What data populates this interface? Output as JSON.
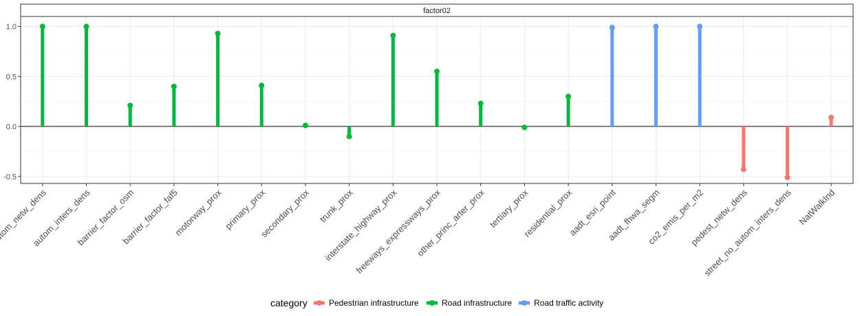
{
  "chart_data": {
    "type": "lollipop",
    "facet": "factor02",
    "categories": [
      "autom_netw_dens",
      "autom_inters_dens",
      "barrier_factor_osm",
      "barrier_factor_faf5",
      "motorway_prox",
      "primary_prox",
      "secondary_prox",
      "trunk_prox",
      "interstate_highway_prox",
      "freeways_expressways_prox",
      "other_princ_arter_prox",
      "tertiary_prox",
      "residential_prox",
      "aadt_esri_point",
      "aadt_fhwa_segm",
      "co2_emis_per_m2",
      "pedest_netw_dens",
      "street_no_autom_inters_dens",
      "NatWalkInd"
    ],
    "values": [
      1.0,
      1.0,
      0.21,
      0.4,
      0.93,
      0.41,
      0.01,
      -0.1,
      0.91,
      0.55,
      0.23,
      -0.01,
      0.3,
      0.99,
      1.0,
      1.0,
      -0.43,
      -0.51,
      0.09
    ],
    "groups": [
      "Road infrastructure",
      "Road infrastructure",
      "Road infrastructure",
      "Road infrastructure",
      "Road infrastructure",
      "Road infrastructure",
      "Road infrastructure",
      "Road infrastructure",
      "Road infrastructure",
      "Road infrastructure",
      "Road infrastructure",
      "Road infrastructure",
      "Road infrastructure",
      "Road traffic activity",
      "Road traffic activity",
      "Road traffic activity",
      "Pedestrian infrastructure",
      "Pedestrian infrastructure",
      "Pedestrian infrastructure"
    ],
    "ylim": [
      -0.57,
      1.1
    ],
    "yticks": [
      -0.5,
      0.0,
      0.5,
      1.0
    ],
    "ytick_labels": [
      "-0.5",
      "0.0",
      "0.5",
      "1.0"
    ],
    "grid": true,
    "legend": {
      "title": "category",
      "placement": "bottom",
      "entries": [
        {
          "label": "Pedestrian infrastructure",
          "color": "#F8766D"
        },
        {
          "label": "Road infrastructure",
          "color": "#00BA38"
        },
        {
          "label": "Road traffic activity",
          "color": "#619CFF"
        }
      ]
    }
  }
}
